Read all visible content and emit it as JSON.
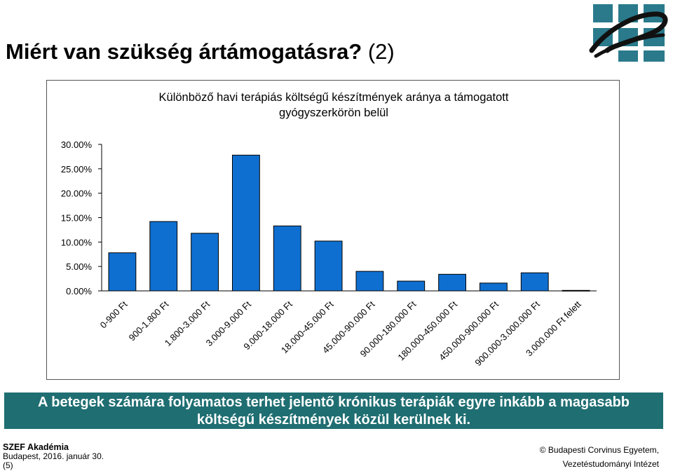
{
  "slide": {
    "title_bold": "Miért van szükség ártámogatásra?",
    "title_suffix": " (2)"
  },
  "chart_data": {
    "type": "bar",
    "title_line1": "Különböző havi terápiás költségű készítmények aránya a támogatott",
    "title_line2": "gyógyszerkörön belül",
    "categories": [
      "0-900 Ft",
      "900-1.800 Ft",
      "1.800-3.000 Ft",
      "3.000-9.000 Ft",
      "9.000-18.000 Ft",
      "18.000-45.000 Ft",
      "45.000-90.000 Ft",
      "90.000-180.000 Ft",
      "180.000-450.000 Ft",
      "450.000-900.000 Ft",
      "900.000-3.000.000 Ft",
      "3.000.000 Ft felett"
    ],
    "values": [
      7.8,
      14.2,
      11.8,
      27.8,
      13.3,
      10.2,
      4.0,
      2.0,
      3.4,
      1.6,
      3.7,
      0.1
    ],
    "y_ticks": [
      "0.00%",
      "5.00%",
      "10.00%",
      "15.00%",
      "20.00%",
      "25.00%",
      "30.00%"
    ],
    "ylim": [
      0,
      30
    ],
    "grid": false,
    "bar_color": "#0f6fd0"
  },
  "callout": {
    "line1": "A betegek számára folyamatos terhet jelentő krónikus terápiák egyre inkább a magasabb",
    "line2": "költségű készítmények közül kerülnek ki."
  },
  "footer": {
    "org": "SZEF Akadémia",
    "date": "Budapest, 2016. január 30.",
    "page": "(5)",
    "copyright": "© Budapesti Corvinus Egyetem,",
    "institute": "Vezetéstudományi Intézet"
  }
}
